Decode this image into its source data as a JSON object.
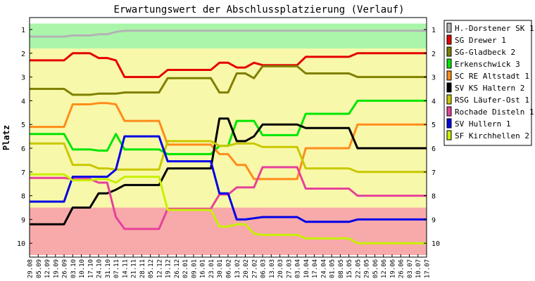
{
  "chart_data": {
    "type": "line",
    "title": "Erwartungswert der Abschlussplatzierung (Verlauf)",
    "ylabel": "Platz",
    "xlabel": "",
    "ylim": [
      1,
      10
    ],
    "y_inverted": true,
    "y_ticks": [
      "1",
      "2",
      "3",
      "4",
      "5",
      "6",
      "7",
      "8",
      "9",
      "10"
    ],
    "x": [
      "29.08",
      "05.09",
      "12.09",
      "19.09",
      "26.09",
      "03.10",
      "10.10",
      "17.10",
      "24.10",
      "31.10",
      "07.11",
      "14.11",
      "21.11",
      "28.11",
      "05.12",
      "12.12",
      "19.12",
      "26.12",
      "02.01",
      "09.01",
      "16.01",
      "23.01",
      "30.01",
      "06.02",
      "13.02",
      "20.02",
      "27.02",
      "06.03",
      "13.03",
      "20.03",
      "27.03",
      "03.04",
      "10.04",
      "17.04",
      "24.04",
      "01.05",
      "08.05",
      "15.05",
      "22.05",
      "29.05",
      "05.06",
      "12.06",
      "19.06",
      "26.06",
      "03.07",
      "10.07",
      "17.07"
    ],
    "grid": false,
    "legend_position": "right",
    "zones": [
      {
        "from": 0.75,
        "to": 1.8,
        "color": "#aaf5aa"
      },
      {
        "from": 1.8,
        "to": 8.5,
        "color": "#f8f8aa"
      },
      {
        "from": 8.5,
        "to": 10.5,
        "color": "#f8aaaa"
      }
    ],
    "series": [
      {
        "name": "H.-Dorstener SK 1",
        "color": "#b3b3b3",
        "values": [
          1.3,
          1.3,
          1.3,
          1.3,
          1.3,
          1.25,
          1.25,
          1.25,
          1.2,
          1.2,
          1.1,
          1.05,
          1.05,
          1.05,
          1.05,
          1.05,
          1.05,
          1.05,
          1.05,
          1.05,
          1.05,
          1.05,
          1.05,
          1.05,
          1.05,
          1.05,
          1.05,
          1.05,
          1.05,
          1.05,
          1.05,
          1.05,
          1.05,
          1.05,
          1.05,
          1.05,
          1.05,
          1.05,
          1.05,
          1.05,
          1.05,
          1.05,
          1.05,
          1.05,
          1.05,
          1.05,
          1.05
        ]
      },
      {
        "name": "SG Drewer 1",
        "color": "#e60000",
        "values": [
          2.3,
          2.3,
          2.3,
          2.3,
          2.3,
          2.0,
          2.0,
          2.0,
          2.2,
          2.2,
          2.3,
          3.0,
          3.0,
          3.0,
          3.0,
          3.0,
          2.7,
          2.7,
          2.7,
          2.7,
          2.7,
          2.7,
          2.4,
          2.4,
          2.6,
          2.6,
          2.4,
          2.5,
          2.5,
          2.5,
          2.5,
          2.5,
          2.15,
          2.15,
          2.15,
          2.15,
          2.15,
          2.15,
          2.0,
          2.0,
          2.0,
          2.0,
          2.0,
          2.0,
          2.0,
          2.0,
          2.0
        ]
      },
      {
        "name": "SG-Gladbeck 2",
        "color": "#808000",
        "values": [
          3.5,
          3.5,
          3.5,
          3.5,
          3.5,
          3.75,
          3.75,
          3.75,
          3.7,
          3.7,
          3.7,
          3.65,
          3.65,
          3.65,
          3.65,
          3.65,
          3.05,
          3.05,
          3.05,
          3.05,
          3.05,
          3.05,
          3.65,
          3.65,
          2.85,
          2.85,
          3.05,
          2.55,
          2.55,
          2.55,
          2.55,
          2.55,
          2.85,
          2.85,
          2.85,
          2.85,
          2.85,
          2.85,
          3.0,
          3.0,
          3.0,
          3.0,
          3.0,
          3.0,
          3.0,
          3.0,
          3.0
        ]
      },
      {
        "name": "Erkenschwick 3",
        "color": "#00e600",
        "values": [
          5.4,
          5.4,
          5.4,
          5.4,
          5.4,
          6.05,
          6.05,
          6.05,
          6.1,
          6.1,
          5.4,
          6.05,
          6.05,
          6.05,
          6.05,
          6.05,
          6.25,
          6.25,
          6.25,
          6.25,
          6.25,
          6.25,
          5.9,
          5.9,
          4.85,
          4.85,
          4.85,
          5.45,
          5.45,
          5.45,
          5.45,
          5.45,
          4.55,
          4.55,
          4.55,
          4.55,
          4.55,
          4.55,
          4.0,
          4.0,
          4.0,
          4.0,
          4.0,
          4.0,
          4.0,
          4.0,
          4.0
        ]
      },
      {
        "name": "SC RE Altstadt 1",
        "color": "#ff8c1a",
        "values": [
          5.1,
          5.1,
          5.1,
          5.1,
          5.1,
          4.15,
          4.15,
          4.15,
          4.1,
          4.1,
          4.15,
          4.85,
          4.85,
          4.85,
          4.85,
          4.85,
          5.85,
          5.85,
          5.85,
          5.85,
          5.85,
          5.85,
          6.25,
          6.25,
          6.7,
          6.7,
          7.3,
          7.3,
          7.3,
          7.3,
          7.3,
          7.3,
          6.0,
          6.0,
          6.0,
          6.0,
          6.0,
          6.0,
          5.0,
          5.0,
          5.0,
          5.0,
          5.0,
          5.0,
          5.0,
          5.0,
          5.0
        ]
      },
      {
        "name": "SV KS Haltern 2",
        "color": "#000000",
        "values": [
          9.2,
          9.2,
          9.2,
          9.2,
          9.2,
          8.5,
          8.5,
          8.5,
          7.9,
          7.9,
          7.75,
          7.55,
          7.55,
          7.55,
          7.55,
          7.55,
          6.85,
          6.85,
          6.85,
          6.85,
          6.85,
          6.85,
          4.75,
          4.75,
          5.7,
          5.7,
          5.5,
          5.0,
          5.0,
          5.0,
          5.0,
          5.0,
          5.15,
          5.15,
          5.15,
          5.15,
          5.15,
          5.15,
          6.0,
          6.0,
          6.0,
          6.0,
          6.0,
          6.0,
          6.0,
          6.0,
          6.0
        ]
      },
      {
        "name": "RSG Läufer-Ost 1",
        "color": "#c8c800",
        "values": [
          5.8,
          5.8,
          5.8,
          5.8,
          5.8,
          6.7,
          6.7,
          6.7,
          6.85,
          6.85,
          6.9,
          6.9,
          6.9,
          6.9,
          6.9,
          6.9,
          5.7,
          5.7,
          5.7,
          5.7,
          5.7,
          5.7,
          5.9,
          5.9,
          5.8,
          5.8,
          5.8,
          5.95,
          5.95,
          5.95,
          5.95,
          5.95,
          6.85,
          6.85,
          6.85,
          6.85,
          6.85,
          6.85,
          7.0,
          7.0,
          7.0,
          7.0,
          7.0,
          7.0,
          7.0,
          7.0,
          7.0
        ]
      },
      {
        "name": "Rochade Disteln 1",
        "color": "#e6419b",
        "values": [
          7.25,
          7.25,
          7.25,
          7.25,
          7.25,
          7.3,
          7.3,
          7.3,
          7.45,
          7.45,
          8.9,
          9.4,
          9.4,
          9.4,
          9.4,
          9.4,
          8.55,
          8.55,
          8.55,
          8.55,
          8.55,
          8.55,
          7.95,
          7.95,
          7.65,
          7.65,
          7.65,
          6.8,
          6.8,
          6.8,
          6.8,
          6.8,
          7.7,
          7.7,
          7.7,
          7.7,
          7.7,
          7.7,
          8.0,
          8.0,
          8.0,
          8.0,
          8.0,
          8.0,
          8.0,
          8.0,
          8.0
        ]
      },
      {
        "name": "SV Hullern 1",
        "color": "#0000e6",
        "values": [
          8.25,
          8.25,
          8.25,
          8.25,
          8.25,
          7.2,
          7.2,
          7.2,
          7.2,
          7.2,
          6.9,
          5.5,
          5.5,
          5.5,
          5.5,
          5.5,
          6.55,
          6.55,
          6.55,
          6.55,
          6.55,
          6.55,
          7.9,
          7.9,
          9.0,
          9.0,
          8.95,
          8.9,
          8.9,
          8.9,
          8.9,
          8.9,
          9.1,
          9.1,
          9.1,
          9.1,
          9.1,
          9.1,
          9.0,
          9.0,
          9.0,
          9.0,
          9.0,
          9.0,
          9.0,
          9.0,
          9.0
        ]
      },
      {
        "name": "SF Kirchhellen 2",
        "color": "#c8f000",
        "values": [
          7.1,
          7.1,
          7.1,
          7.1,
          7.1,
          7.35,
          7.35,
          7.35,
          7.3,
          7.3,
          7.45,
          7.2,
          7.2,
          7.2,
          7.2,
          7.2,
          8.6,
          8.6,
          8.6,
          8.6,
          8.6,
          8.6,
          9.3,
          9.3,
          9.2,
          9.2,
          9.6,
          9.65,
          9.65,
          9.65,
          9.65,
          9.65,
          9.8,
          9.8,
          9.8,
          9.8,
          9.8,
          9.8,
          10.0,
          10.0,
          10.0,
          10.0,
          10.0,
          10.0,
          10.0,
          10.0,
          10.0
        ]
      }
    ]
  }
}
